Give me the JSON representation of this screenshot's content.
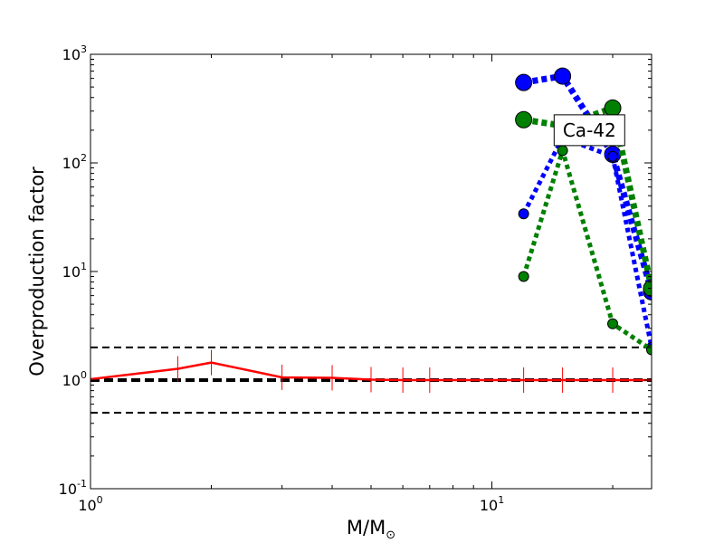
{
  "chart_data": {
    "type": "line",
    "title": "",
    "xlabel": "M/M",
    "xlabel_sub": "⊙",
    "ylabel": "Overproduction factor",
    "xscale": "log",
    "yscale": "log",
    "xlim": [
      1,
      25
    ],
    "ylim": [
      0.1,
      1000
    ],
    "grid": false,
    "x_ticks": [
      {
        "value": 1,
        "base": "10",
        "exp": "0"
      },
      {
        "value": 10,
        "base": "10",
        "exp": "1"
      }
    ],
    "y_ticks": [
      {
        "value": 0.1,
        "base": "10",
        "exp": "-1"
      },
      {
        "value": 1,
        "base": "10",
        "exp": "0"
      },
      {
        "value": 10,
        "base": "10",
        "exp": "1"
      },
      {
        "value": 100,
        "base": "10",
        "exp": "2"
      },
      {
        "value": 1000,
        "base": "10",
        "exp": "3"
      }
    ],
    "reference_lines": [
      {
        "y": 2.0,
        "color": "#000000",
        "style": "dashed"
      },
      {
        "y": 1.0,
        "color": "#000000",
        "style": "dashed-thick"
      },
      {
        "y": 0.5,
        "color": "#000000",
        "style": "dashed"
      }
    ],
    "series": [
      {
        "color": "#ff0000",
        "style": "solid",
        "marker": "tick",
        "x": [
          1.0,
          1.65,
          2.0,
          3.0,
          4.0,
          5.0,
          6.0,
          7.0,
          12.0,
          15.0,
          20.0,
          25.0
        ],
        "y": [
          1.02,
          1.27,
          1.45,
          1.06,
          1.05,
          1.01,
          1.0,
          1.0,
          1.0,
          1.0,
          1.0,
          1.0
        ]
      },
      {
        "color": "#0000ff",
        "style": "dotted-thick",
        "marker": "circle-large",
        "x": [
          12.0,
          15.0,
          20.0,
          25.0
        ],
        "y": [
          550,
          630,
          120,
          6.5
        ]
      },
      {
        "color": "#008000",
        "style": "dotted-thick",
        "marker": "circle-large",
        "x": [
          12.0,
          15.0,
          20.0,
          25.0
        ],
        "y": [
          250,
          220,
          320,
          7.0
        ]
      },
      {
        "color": "#0000ff",
        "style": "dotted",
        "marker": "circle-small",
        "x": [
          12.0,
          15.0,
          20.0,
          25.0
        ],
        "y": [
          34,
          170,
          115,
          2.0
        ]
      },
      {
        "color": "#008000",
        "style": "dotted",
        "marker": "circle-small",
        "x": [
          12.0,
          15.0,
          20.0,
          25.0
        ],
        "y": [
          9.0,
          130,
          3.3,
          1.9
        ]
      }
    ],
    "annotations": [
      {
        "text": "Ca-42",
        "x": 17.5,
        "y": 200
      }
    ]
  }
}
